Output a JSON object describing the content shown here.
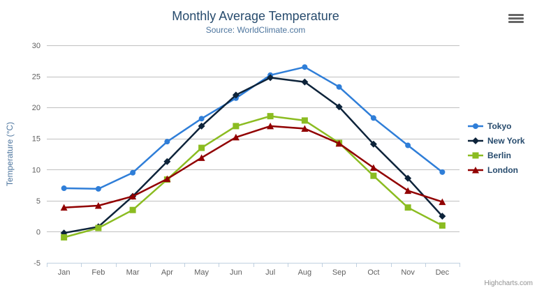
{
  "chart_data": {
    "type": "line",
    "title": "Monthly Average Temperature",
    "subtitle": "Source: WorldClimate.com",
    "xlabel": "",
    "ylabel": "Temperature (°C)",
    "ylim": [
      -5,
      30
    ],
    "ytick_step": 5,
    "grid": true,
    "legend_position": "right",
    "categories": [
      "Jan",
      "Feb",
      "Mar",
      "Apr",
      "May",
      "Jun",
      "Jul",
      "Aug",
      "Sep",
      "Oct",
      "Nov",
      "Dec"
    ],
    "series": [
      {
        "name": "Tokyo",
        "color": "#2f7ed8",
        "marker": "circle",
        "values": [
          7.0,
          6.9,
          9.5,
          14.5,
          18.2,
          21.5,
          25.2,
          26.5,
          23.3,
          18.3,
          13.9,
          9.6
        ]
      },
      {
        "name": "New York",
        "color": "#0d233a",
        "marker": "diamond",
        "values": [
          -0.2,
          0.8,
          5.7,
          11.3,
          17.0,
          22.0,
          24.8,
          24.1,
          20.1,
          14.1,
          8.6,
          2.5
        ]
      },
      {
        "name": "Berlin",
        "color": "#8bbc21",
        "marker": "square",
        "values": [
          -0.9,
          0.6,
          3.5,
          8.4,
          13.5,
          17.0,
          18.6,
          17.9,
          14.3,
          9.0,
          3.9,
          1.0
        ]
      },
      {
        "name": "London",
        "color": "#910000",
        "marker": "triangle",
        "values": [
          3.9,
          4.2,
          5.7,
          8.5,
          11.9,
          15.2,
          17.0,
          16.6,
          14.2,
          10.3,
          6.6,
          4.8
        ]
      }
    ]
  },
  "credits": {
    "label": "Highcharts.com"
  },
  "colors": {
    "title": "#274b6d",
    "subtitle": "#4d759e",
    "axis_title": "#4d759e",
    "axis_label": "#606060",
    "axis_line": "#c0d0e0",
    "grid_line": "#c0c0c0",
    "legend_text": "#274b6d",
    "credits_text": "#909090",
    "menu_icon": "#666666"
  }
}
